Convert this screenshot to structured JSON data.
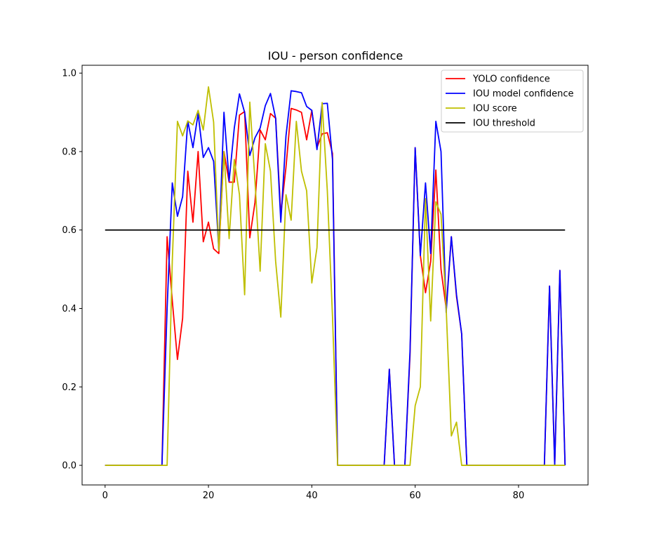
{
  "chart_data": {
    "type": "line",
    "title": "IOU - person confidence",
    "xlabel": "",
    "ylabel": "",
    "xlim": [
      -4.45,
      93.45
    ],
    "ylim": [
      -0.05,
      1.02
    ],
    "xticks": [
      0,
      20,
      40,
      60,
      80
    ],
    "yticks": [
      0.0,
      0.2,
      0.4,
      0.6,
      0.8,
      1.0
    ],
    "xtick_labels": [
      "0",
      "20",
      "40",
      "60",
      "80"
    ],
    "ytick_labels": [
      "0.0",
      "0.2",
      "0.4",
      "0.6",
      "0.8",
      "1.0"
    ],
    "grid": false,
    "legend_position": "upper right",
    "series": [
      {
        "name": "YOLO confidence",
        "color": "#ff0000",
        "x": [
          0,
          1,
          2,
          3,
          4,
          5,
          6,
          7,
          8,
          9,
          10,
          11,
          12,
          13,
          14,
          15,
          16,
          17,
          18,
          19,
          20,
          21,
          22,
          23,
          24,
          25,
          26,
          27,
          28,
          29,
          30,
          31,
          32,
          33,
          34,
          35,
          36,
          37,
          38,
          39,
          40,
          41,
          42,
          43,
          44,
          45,
          46,
          47,
          48,
          49,
          50,
          51,
          52,
          53,
          54,
          55,
          56,
          57,
          58,
          59,
          60,
          61,
          62,
          63,
          64,
          65,
          66,
          67,
          68,
          69,
          70,
          71,
          72,
          73,
          74,
          75,
          76,
          77,
          78,
          79,
          80,
          81,
          82,
          83,
          84,
          85,
          86,
          87,
          88,
          89
        ],
        "y": [
          0,
          0,
          0,
          0,
          0,
          0,
          0,
          0,
          0,
          0,
          0,
          0,
          0.583,
          0.42,
          0.27,
          0.375,
          0.75,
          0.62,
          0.8,
          0.57,
          0.62,
          0.552,
          0.54,
          0.8,
          0.722,
          0.722,
          0.893,
          0.902,
          0.58,
          0.67,
          0.855,
          0.83,
          0.897,
          0.885,
          0.64,
          0.76,
          0.91,
          0.906,
          0.9,
          0.83,
          0.905,
          0.81,
          0.845,
          0.848,
          0.795,
          0,
          0,
          0,
          0,
          0,
          0,
          0,
          0,
          0,
          0,
          0.245,
          0,
          0,
          0,
          0.28,
          0.81,
          0.535,
          0.44,
          0.52,
          0.753,
          0.5,
          0.4,
          0.583,
          0.43,
          0.335,
          0,
          0,
          0,
          0,
          0,
          0,
          0,
          0,
          0,
          0,
          0,
          0,
          0,
          0,
          0,
          0,
          0.457,
          0,
          0.497,
          0
        ]
      },
      {
        "name": "IOU model confidence",
        "color": "#0000ff",
        "x": [
          0,
          1,
          2,
          3,
          4,
          5,
          6,
          7,
          8,
          9,
          10,
          11,
          12,
          13,
          14,
          15,
          16,
          17,
          18,
          19,
          20,
          21,
          22,
          23,
          24,
          25,
          26,
          27,
          28,
          29,
          30,
          31,
          32,
          33,
          34,
          35,
          36,
          37,
          38,
          39,
          40,
          41,
          42,
          43,
          44,
          45,
          46,
          47,
          48,
          49,
          50,
          51,
          52,
          53,
          54,
          55,
          56,
          57,
          58,
          59,
          60,
          61,
          62,
          63,
          64,
          65,
          66,
          67,
          68,
          69,
          70,
          71,
          72,
          73,
          74,
          75,
          76,
          77,
          78,
          79,
          80,
          81,
          82,
          83,
          84,
          85,
          86,
          87,
          88,
          89
        ],
        "y": [
          0,
          0,
          0,
          0,
          0,
          0,
          0,
          0,
          0,
          0,
          0,
          0,
          0.4,
          0.72,
          0.635,
          0.685,
          0.878,
          0.81,
          0.897,
          0.785,
          0.81,
          0.775,
          0.55,
          0.9,
          0.725,
          0.86,
          0.947,
          0.9,
          0.79,
          0.835,
          0.86,
          0.917,
          0.948,
          0.885,
          0.62,
          0.84,
          0.955,
          0.953,
          0.95,
          0.915,
          0.905,
          0.805,
          0.922,
          0.923,
          0.78,
          0,
          0,
          0,
          0,
          0,
          0,
          0,
          0,
          0,
          0,
          0.245,
          0,
          0,
          0,
          0.29,
          0.81,
          0.535,
          0.72,
          0.54,
          0.877,
          0.8,
          0.39,
          0.583,
          0.435,
          0.335,
          0,
          0,
          0,
          0,
          0,
          0,
          0,
          0,
          0,
          0,
          0,
          0,
          0,
          0,
          0,
          0,
          0.457,
          0,
          0.497,
          0
        ]
      },
      {
        "name": "IOU score",
        "color": "#bfbf00",
        "x": [
          0,
          1,
          2,
          3,
          4,
          5,
          6,
          7,
          8,
          9,
          10,
          11,
          12,
          13,
          14,
          15,
          16,
          17,
          18,
          19,
          20,
          21,
          22,
          23,
          24,
          25,
          26,
          27,
          28,
          29,
          30,
          31,
          32,
          33,
          34,
          35,
          36,
          37,
          38,
          39,
          40,
          41,
          42,
          43,
          44,
          45,
          46,
          47,
          48,
          49,
          50,
          51,
          52,
          53,
          54,
          55,
          56,
          57,
          58,
          59,
          60,
          61,
          62,
          63,
          64,
          65,
          66,
          67,
          68,
          69,
          70,
          71,
          72,
          73,
          74,
          75,
          76,
          77,
          78,
          79,
          80,
          81,
          82,
          83,
          84,
          85,
          86,
          87,
          88,
          89
        ],
        "y": [
          0,
          0,
          0,
          0,
          0,
          0,
          0,
          0,
          0,
          0,
          0,
          0,
          0,
          0.52,
          0.877,
          0.84,
          0.878,
          0.868,
          0.905,
          0.855,
          0.965,
          0.875,
          0.548,
          0.8,
          0.578,
          0.78,
          0.69,
          0.435,
          0.926,
          0.725,
          0.495,
          0.82,
          0.75,
          0.52,
          0.378,
          0.69,
          0.625,
          0.877,
          0.75,
          0.7,
          0.465,
          0.555,
          0.925,
          0.7,
          0.38,
          0,
          0,
          0,
          0,
          0,
          0,
          0,
          0,
          0,
          0,
          0,
          0,
          0,
          0,
          0,
          0.152,
          0.2,
          0.68,
          0.368,
          0.672,
          0.64,
          0.4,
          0.075,
          0.11,
          0,
          0,
          0,
          0,
          0,
          0,
          0,
          0,
          0,
          0,
          0,
          0,
          0,
          0,
          0,
          0,
          0,
          0,
          0,
          0,
          0
        ]
      },
      {
        "name": "IOU threshold",
        "color": "#000000",
        "x": [
          0,
          89
        ],
        "y": [
          0.6,
          0.6
        ]
      }
    ]
  }
}
